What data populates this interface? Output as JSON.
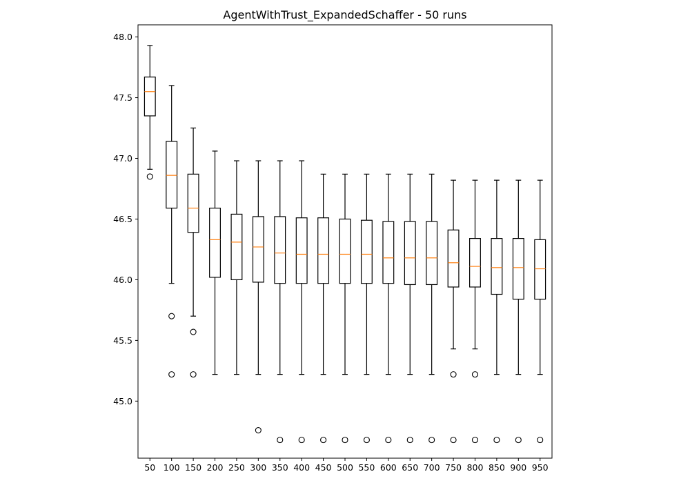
{
  "chart_data": {
    "type": "box",
    "title": "AgentWithTrust_ExpandedSchaffer - 50 runs",
    "xlabel": "",
    "ylabel": "",
    "categories": [
      "50",
      "100",
      "150",
      "200",
      "250",
      "300",
      "350",
      "400",
      "450",
      "500",
      "550",
      "600",
      "650",
      "700",
      "750",
      "800",
      "850",
      "900",
      "950"
    ],
    "ylim": [
      44.53,
      48.1
    ],
    "yticks": [
      "45.0",
      "45.5",
      "46.0",
      "46.5",
      "47.0",
      "47.5",
      "48.0"
    ],
    "grid": false,
    "median_color": "#ff7f0e",
    "box_color": "#000000",
    "boxes": [
      {
        "whisker_low": 46.91,
        "q1": 47.35,
        "median": 47.55,
        "q3": 47.67,
        "whisker_high": 47.93,
        "outliers": [
          46.85
        ]
      },
      {
        "whisker_low": 45.97,
        "q1": 46.59,
        "median": 46.86,
        "q3": 47.14,
        "whisker_high": 47.6,
        "outliers": [
          45.7,
          45.22
        ]
      },
      {
        "whisker_low": 45.7,
        "q1": 46.39,
        "median": 46.59,
        "q3": 46.87,
        "whisker_high": 47.25,
        "outliers": [
          45.57,
          45.22
        ]
      },
      {
        "whisker_low": 45.22,
        "q1": 46.02,
        "median": 46.33,
        "q3": 46.59,
        "whisker_high": 47.06,
        "outliers": []
      },
      {
        "whisker_low": 45.22,
        "q1": 46.0,
        "median": 46.31,
        "q3": 46.54,
        "whisker_high": 46.98,
        "outliers": []
      },
      {
        "whisker_low": 45.22,
        "q1": 45.98,
        "median": 46.27,
        "q3": 46.52,
        "whisker_high": 46.98,
        "outliers": [
          44.76
        ]
      },
      {
        "whisker_low": 45.22,
        "q1": 45.97,
        "median": 46.22,
        "q3": 46.52,
        "whisker_high": 46.98,
        "outliers": [
          44.68
        ]
      },
      {
        "whisker_low": 45.22,
        "q1": 45.97,
        "median": 46.21,
        "q3": 46.51,
        "whisker_high": 46.98,
        "outliers": [
          44.68
        ]
      },
      {
        "whisker_low": 45.22,
        "q1": 45.97,
        "median": 46.21,
        "q3": 46.51,
        "whisker_high": 46.87,
        "outliers": [
          44.68
        ]
      },
      {
        "whisker_low": 45.22,
        "q1": 45.97,
        "median": 46.21,
        "q3": 46.5,
        "whisker_high": 46.87,
        "outliers": [
          44.68
        ]
      },
      {
        "whisker_low": 45.22,
        "q1": 45.97,
        "median": 46.21,
        "q3": 46.49,
        "whisker_high": 46.87,
        "outliers": [
          44.68
        ]
      },
      {
        "whisker_low": 45.22,
        "q1": 45.97,
        "median": 46.18,
        "q3": 46.48,
        "whisker_high": 46.87,
        "outliers": [
          44.68
        ]
      },
      {
        "whisker_low": 45.22,
        "q1": 45.96,
        "median": 46.18,
        "q3": 46.48,
        "whisker_high": 46.87,
        "outliers": [
          44.68
        ]
      },
      {
        "whisker_low": 45.22,
        "q1": 45.96,
        "median": 46.18,
        "q3": 46.48,
        "whisker_high": 46.87,
        "outliers": [
          44.68
        ]
      },
      {
        "whisker_low": 45.43,
        "q1": 45.94,
        "median": 46.14,
        "q3": 46.41,
        "whisker_high": 46.82,
        "outliers": [
          45.22,
          44.68
        ]
      },
      {
        "whisker_low": 45.43,
        "q1": 45.94,
        "median": 46.11,
        "q3": 46.34,
        "whisker_high": 46.82,
        "outliers": [
          45.22,
          44.68
        ]
      },
      {
        "whisker_low": 45.22,
        "q1": 45.88,
        "median": 46.1,
        "q3": 46.34,
        "whisker_high": 46.82,
        "outliers": [
          44.68
        ]
      },
      {
        "whisker_low": 45.22,
        "q1": 45.84,
        "median": 46.1,
        "q3": 46.34,
        "whisker_high": 46.82,
        "outliers": [
          44.68
        ]
      },
      {
        "whisker_low": 45.22,
        "q1": 45.84,
        "median": 46.09,
        "q3": 46.33,
        "whisker_high": 46.82,
        "outliers": [
          44.68
        ]
      }
    ]
  }
}
